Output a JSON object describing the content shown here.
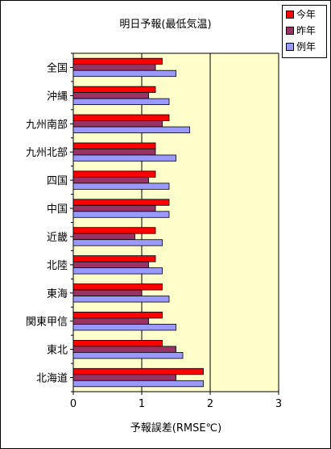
{
  "chart_data": {
    "type": "bar",
    "orientation": "horizontal",
    "title": "明日予報(最低気温)",
    "xlabel": "予報誤差(RMSE℃)",
    "ylabel": "",
    "xlim": [
      0,
      3
    ],
    "x_ticks": [
      "0",
      "1",
      "2",
      "3"
    ],
    "grid": "vertical",
    "legend_position": "top-right",
    "categories": [
      "全国",
      "沖縄",
      "九州南部",
      "九州北部",
      "四国",
      "中国",
      "近畿",
      "北陸",
      "東海",
      "関東甲信",
      "東北",
      "北海道"
    ],
    "series": [
      {
        "name": "今年",
        "color": "#ff0000",
        "values": [
          1.3,
          1.2,
          1.4,
          1.2,
          1.2,
          1.4,
          1.2,
          1.2,
          1.3,
          1.3,
          1.3,
          1.9
        ]
      },
      {
        "name": "昨年",
        "color": "#993366",
        "values": [
          1.2,
          1.1,
          1.3,
          1.2,
          1.1,
          1.2,
          0.9,
          1.1,
          1.0,
          1.1,
          1.5,
          1.5
        ]
      },
      {
        "name": "例年",
        "color": "#9999ff",
        "values": [
          1.5,
          1.4,
          1.7,
          1.5,
          1.4,
          1.4,
          1.3,
          1.3,
          1.4,
          1.5,
          1.6,
          1.9
        ]
      }
    ],
    "plot_background": "#ffffcc"
  }
}
